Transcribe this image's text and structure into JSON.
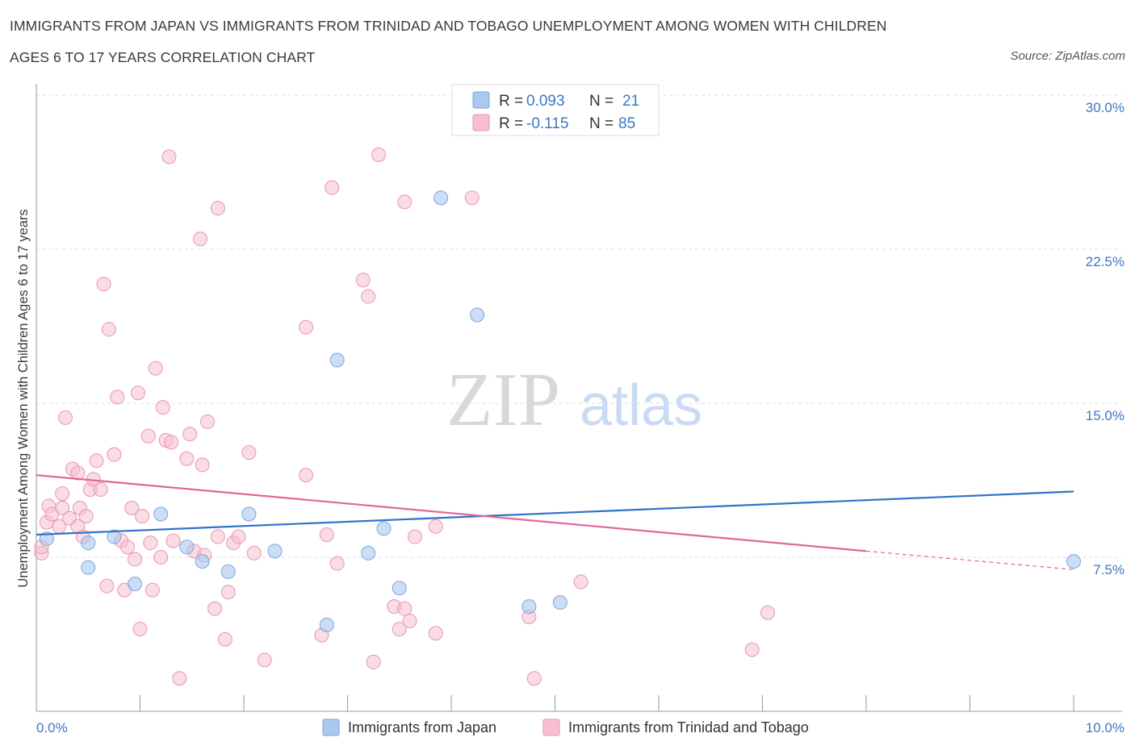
{
  "header": {
    "title_line1": "IMMIGRANTS FROM JAPAN VS IMMIGRANTS FROM TRINIDAD AND TOBAGO UNEMPLOYMENT AMONG WOMEN WITH CHILDREN",
    "title_line2": "AGES 6 TO 17 YEARS CORRELATION CHART",
    "source": "Source: ZipAtlas.com"
  },
  "watermark": {
    "zip": "ZIP",
    "atlas": "atlas"
  },
  "legend_box": {
    "r_label": "R =",
    "n_label": "N =",
    "rows": [
      {
        "r": "0.093",
        "n": "21"
      },
      {
        "r": "-0.115",
        "n": "85"
      }
    ]
  },
  "bottom_legend": [
    "Immigrants from Japan",
    "Immigrants from Trinidad and Tobago"
  ],
  "colors": {
    "japan_fill": "#aac8f0",
    "japan_stroke": "#7aa6dc",
    "japan_line": "#2f72c8",
    "tt_fill": "#f6bfd0",
    "tt_stroke": "#e996b2",
    "tt_line": "#e0679a",
    "tick_text": "#3b78c4",
    "grid": "#dddddd"
  },
  "chart_data": {
    "type": "scatter",
    "title": "IMMIGRANTS FROM JAPAN VS IMMIGRANTS FROM TRINIDAD AND TOBAGO UNEMPLOYMENT AMONG WOMEN WITH CHILDREN AGES 6 TO 17 YEARS CORRELATION CHART",
    "xlabel": "",
    "ylabel": "Unemployment Among Women with Children Ages 6 to 17 years",
    "xlim": [
      0,
      10
    ],
    "ylim": [
      0,
      30
    ],
    "x_tick_labels": [
      "0.0%",
      "10.0%"
    ],
    "y_ticks": [
      7.5,
      15.0,
      22.5,
      30.0
    ],
    "y_tick_labels": [
      "7.5%",
      "15.0%",
      "22.5%",
      "30.0%"
    ],
    "grid": true,
    "legend_position": "top-center",
    "series": [
      {
        "name": "Immigrants from Japan",
        "R": 0.093,
        "N": 21,
        "trend": {
          "x": [
            0,
            10
          ],
          "y": [
            8.6,
            10.7
          ]
        },
        "points": [
          [
            0.1,
            8.4
          ],
          [
            0.5,
            8.2
          ],
          [
            0.5,
            7.0
          ],
          [
            0.75,
            8.5
          ],
          [
            0.95,
            6.2
          ],
          [
            1.2,
            9.6
          ],
          [
            1.45,
            8.0
          ],
          [
            1.6,
            7.3
          ],
          [
            1.85,
            6.8
          ],
          [
            2.05,
            9.6
          ],
          [
            2.3,
            7.8
          ],
          [
            2.8,
            4.2
          ],
          [
            2.9,
            17.1
          ],
          [
            3.2,
            7.7
          ],
          [
            3.35,
            8.9
          ],
          [
            3.5,
            6.0
          ],
          [
            3.9,
            25.0
          ],
          [
            4.25,
            19.3
          ],
          [
            4.75,
            5.1
          ],
          [
            5.05,
            5.3
          ],
          [
            10.0,
            7.3
          ]
        ]
      },
      {
        "name": "Immigrants from Trinidad and Tobago",
        "R": -0.115,
        "N": 85,
        "trend": {
          "x": [
            0,
            8.0
          ],
          "y": [
            11.5,
            7.8
          ]
        },
        "trend_dashed": {
          "x": [
            8.0,
            10.0
          ],
          "y": [
            7.8,
            6.9
          ]
        },
        "points": [
          [
            0.05,
            7.7
          ],
          [
            0.05,
            8.0
          ],
          [
            0.1,
            9.2
          ],
          [
            0.12,
            10.0
          ],
          [
            0.15,
            9.6
          ],
          [
            0.22,
            9.0
          ],
          [
            0.25,
            9.9
          ],
          [
            0.25,
            10.6
          ],
          [
            0.28,
            14.3
          ],
          [
            0.32,
            9.4
          ],
          [
            0.35,
            11.8
          ],
          [
            0.4,
            11.6
          ],
          [
            0.42,
            9.9
          ],
          [
            0.45,
            8.5
          ],
          [
            0.48,
            9.5
          ],
          [
            0.52,
            10.8
          ],
          [
            0.55,
            11.3
          ],
          [
            0.58,
            12.2
          ],
          [
            0.62,
            10.8
          ],
          [
            0.65,
            20.8
          ],
          [
            0.68,
            6.1
          ],
          [
            0.7,
            18.6
          ],
          [
            0.75,
            12.5
          ],
          [
            0.78,
            15.3
          ],
          [
            0.82,
            8.3
          ],
          [
            0.85,
            5.9
          ],
          [
            0.88,
            8.0
          ],
          [
            0.92,
            9.9
          ],
          [
            0.95,
            7.4
          ],
          [
            0.98,
            15.5
          ],
          [
            1.0,
            4.0
          ],
          [
            1.02,
            9.5
          ],
          [
            1.08,
            13.4
          ],
          [
            1.1,
            8.2
          ],
          [
            1.12,
            5.9
          ],
          [
            1.15,
            16.7
          ],
          [
            1.2,
            7.5
          ],
          [
            1.22,
            14.8
          ],
          [
            1.25,
            13.2
          ],
          [
            1.28,
            27.0
          ],
          [
            1.3,
            13.1
          ],
          [
            1.32,
            8.3
          ],
          [
            1.38,
            1.6
          ],
          [
            1.45,
            12.3
          ],
          [
            1.48,
            13.5
          ],
          [
            1.52,
            7.8
          ],
          [
            1.58,
            23.0
          ],
          [
            1.6,
            12.0
          ],
          [
            1.62,
            7.6
          ],
          [
            1.65,
            14.1
          ],
          [
            1.72,
            5.0
          ],
          [
            1.75,
            8.5
          ],
          [
            1.75,
            24.5
          ],
          [
            1.82,
            3.5
          ],
          [
            1.85,
            5.8
          ],
          [
            1.9,
            8.2
          ],
          [
            1.95,
            8.5
          ],
          [
            2.05,
            12.6
          ],
          [
            2.1,
            7.7
          ],
          [
            2.2,
            2.5
          ],
          [
            2.6,
            11.5
          ],
          [
            2.6,
            18.7
          ],
          [
            2.75,
            3.7
          ],
          [
            2.8,
            8.6
          ],
          [
            2.85,
            25.5
          ],
          [
            2.9,
            7.2
          ],
          [
            3.15,
            21.0
          ],
          [
            3.2,
            20.2
          ],
          [
            3.25,
            2.4
          ],
          [
            3.3,
            27.1
          ],
          [
            3.45,
            5.1
          ],
          [
            3.5,
            4.0
          ],
          [
            3.55,
            24.8
          ],
          [
            3.55,
            5.0
          ],
          [
            3.6,
            4.4
          ],
          [
            3.65,
            8.5
          ],
          [
            3.85,
            3.8
          ],
          [
            3.85,
            9.0
          ],
          [
            4.2,
            25.0
          ],
          [
            4.75,
            4.6
          ],
          [
            4.8,
            1.6
          ],
          [
            5.25,
            6.3
          ],
          [
            6.9,
            3.0
          ],
          [
            7.05,
            4.8
          ],
          [
            0.4,
            9.0
          ]
        ]
      }
    ]
  }
}
